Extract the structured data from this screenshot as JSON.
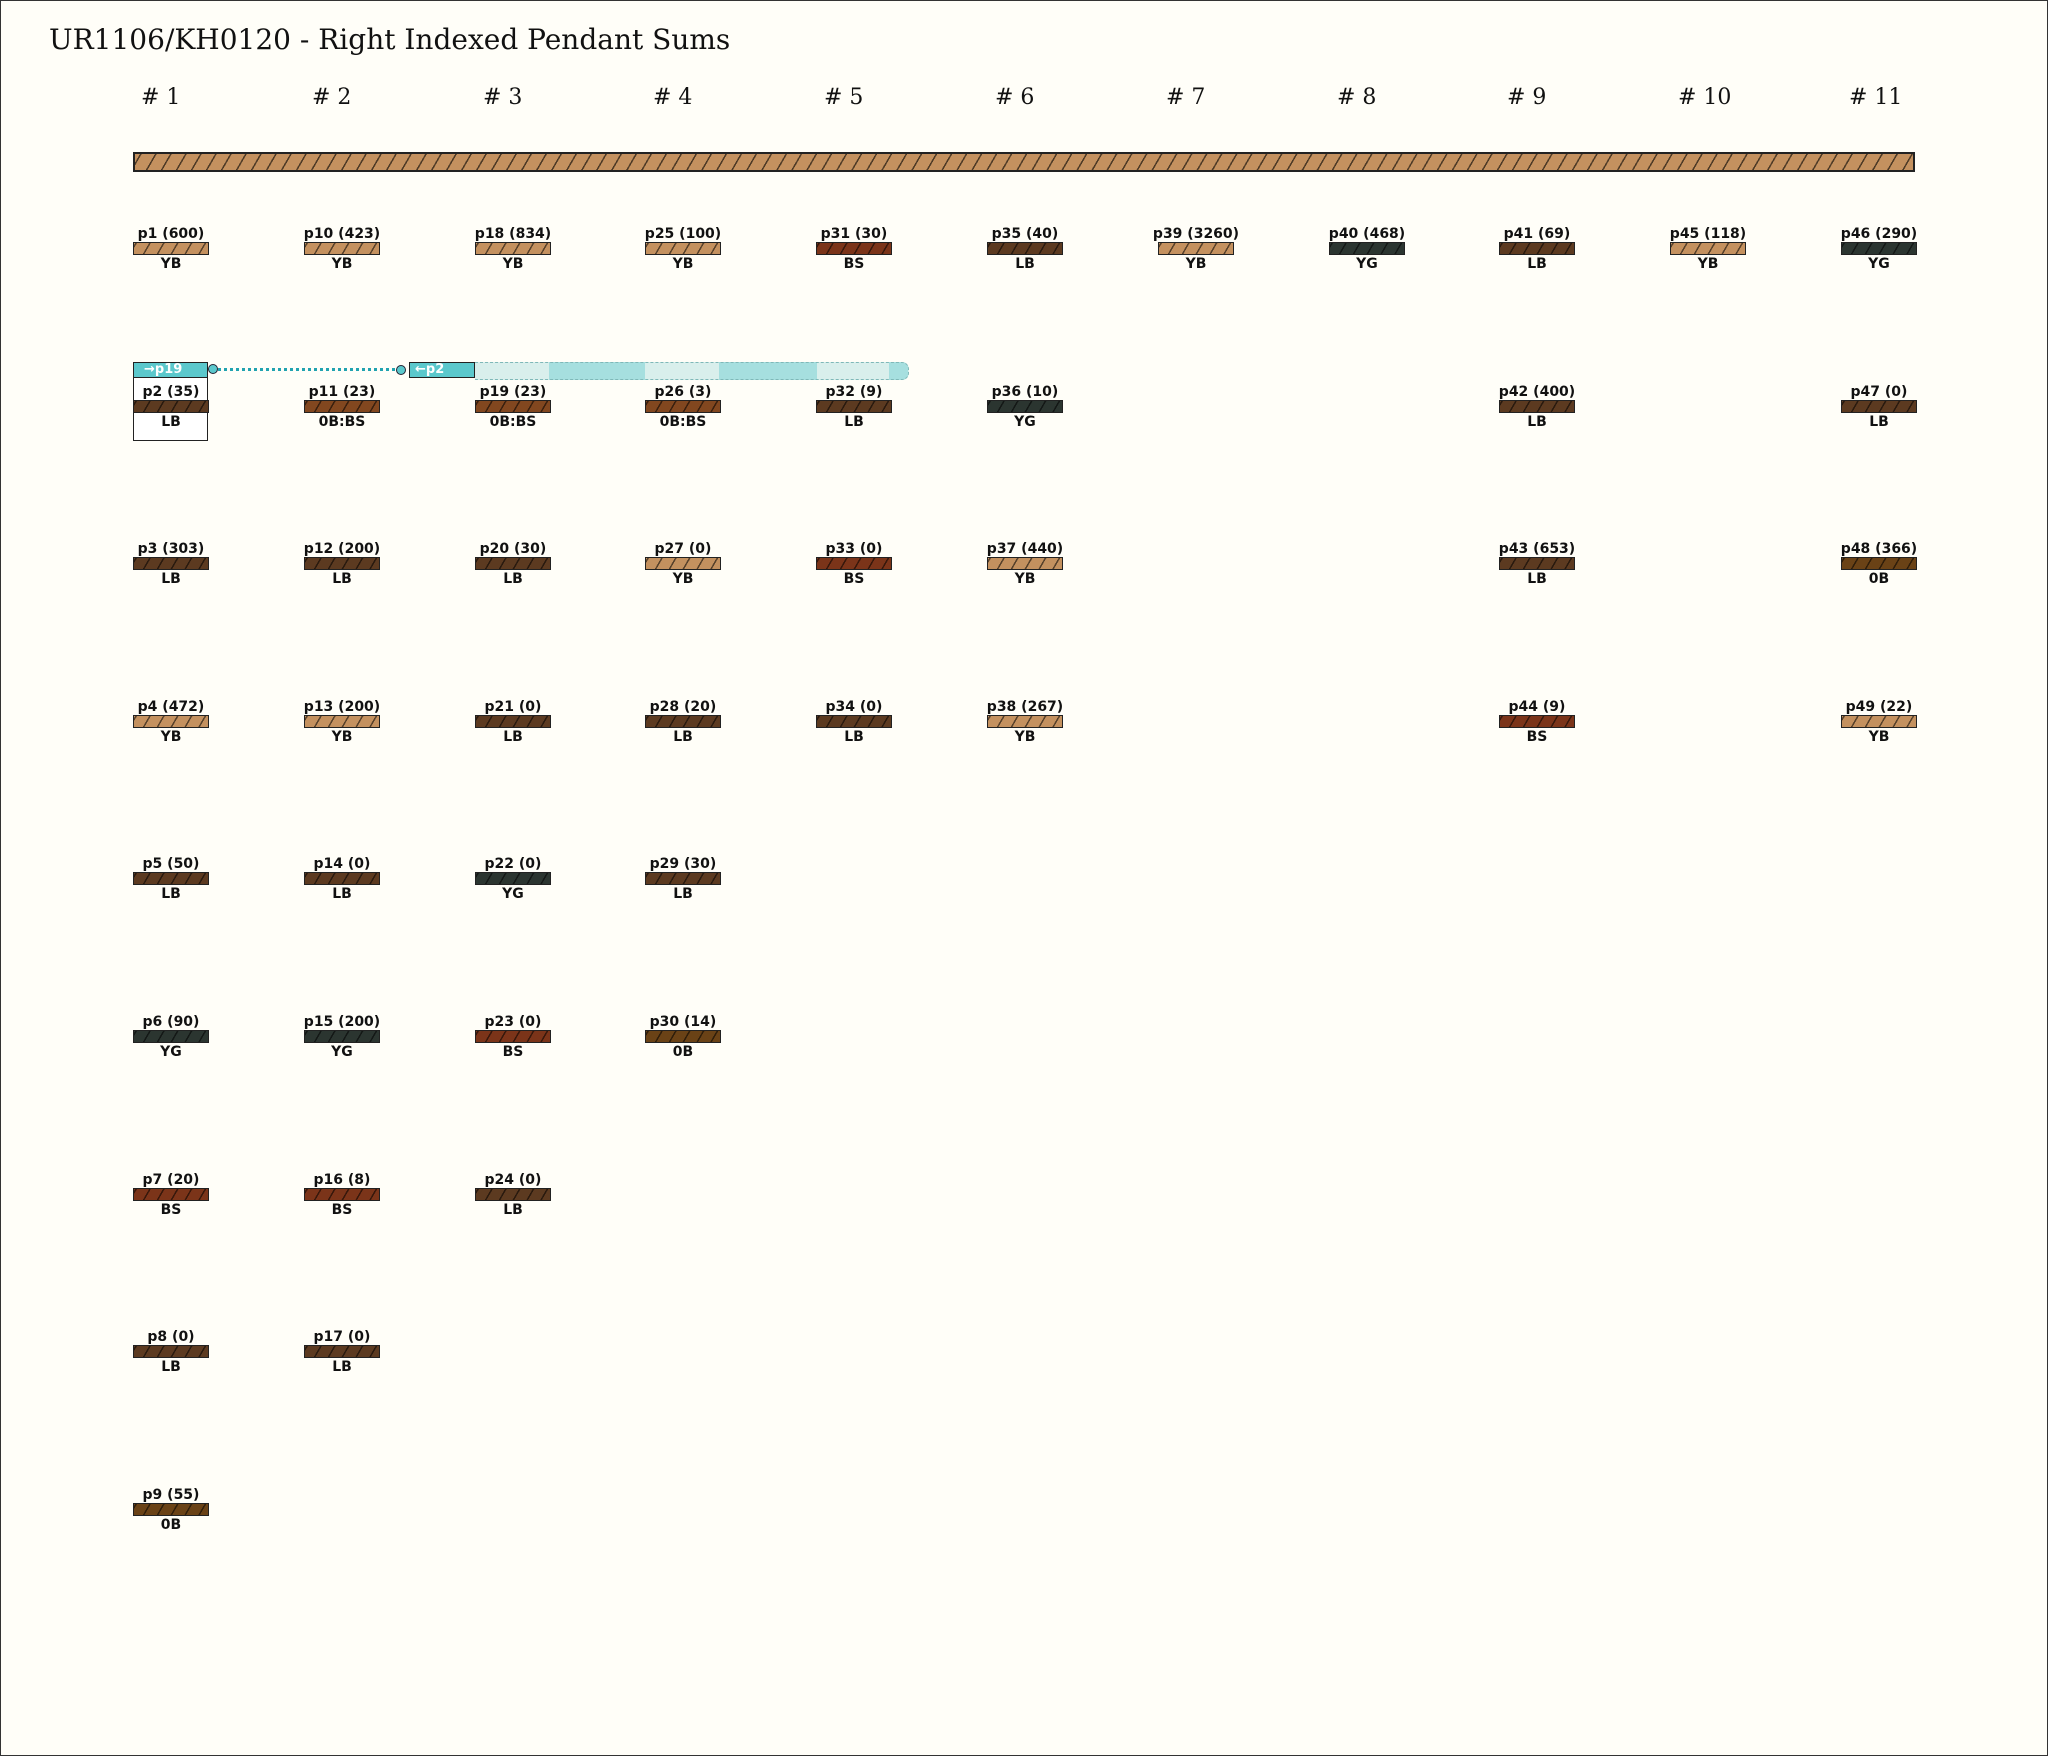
{
  "title": "UR1106/KH0120 - Right Indexed Pendant Sums",
  "cord_colors": {
    "YB": "#c4915f",
    "LB": "#5c3a20",
    "BS": "#7b3419",
    "YG": "#2b3530",
    "0B": "#6a4216",
    "0B:BS": "#82471f"
  },
  "link": {
    "from_label": "→p19",
    "to_label": "←p2"
  },
  "columns": [
    {
      "header": "# 1",
      "pendants": [
        {
          "label": "p1 (600)",
          "color": "YB"
        },
        {
          "label": "p2 (35)",
          "color": "LB"
        },
        {
          "label": "p3 (303)",
          "color": "LB"
        },
        {
          "label": "p4 (472)",
          "color": "YB"
        },
        {
          "label": "p5 (50)",
          "color": "LB"
        },
        {
          "label": "p6 (90)",
          "color": "YG"
        },
        {
          "label": "p7 (20)",
          "color": "BS"
        },
        {
          "label": "p8 (0)",
          "color": "LB"
        },
        {
          "label": "p9 (55)",
          "color": "0B"
        }
      ]
    },
    {
      "header": "# 2",
      "pendants": [
        {
          "label": "p10 (423)",
          "color": "YB"
        },
        {
          "label": "p11 (23)",
          "color": "0B:BS"
        },
        {
          "label": "p12 (200)",
          "color": "LB"
        },
        {
          "label": "p13 (200)",
          "color": "YB"
        },
        {
          "label": "p14 (0)",
          "color": "LB"
        },
        {
          "label": "p15 (200)",
          "color": "YG"
        },
        {
          "label": "p16 (8)",
          "color": "BS"
        },
        {
          "label": "p17 (0)",
          "color": "LB"
        }
      ]
    },
    {
      "header": "# 3",
      "pendants": [
        {
          "label": "p18 (834)",
          "color": "YB"
        },
        {
          "label": "p19 (23)",
          "color": "0B:BS"
        },
        {
          "label": "p20 (30)",
          "color": "LB"
        },
        {
          "label": "p21 (0)",
          "color": "LB"
        },
        {
          "label": "p22 (0)",
          "color": "YG"
        },
        {
          "label": "p23 (0)",
          "color": "BS"
        },
        {
          "label": "p24 (0)",
          "color": "LB"
        }
      ]
    },
    {
      "header": "# 4",
      "pendants": [
        {
          "label": "p25 (100)",
          "color": "YB"
        },
        {
          "label": "p26 (3)",
          "color": "0B:BS"
        },
        {
          "label": "p27 (0)",
          "color": "YB"
        },
        {
          "label": "p28 (20)",
          "color": "LB"
        },
        {
          "label": "p29 (30)",
          "color": "LB"
        },
        {
          "label": "p30 (14)",
          "color": "0B"
        }
      ]
    },
    {
      "header": "# 5",
      "pendants": [
        {
          "label": "p31 (30)",
          "color": "BS"
        },
        {
          "label": "p32 (9)",
          "color": "LB"
        },
        {
          "label": "p33 (0)",
          "color": "BS"
        },
        {
          "label": "p34 (0)",
          "color": "LB"
        }
      ]
    },
    {
      "header": "# 6",
      "pendants": [
        {
          "label": "p35 (40)",
          "color": "LB"
        },
        {
          "label": "p36 (10)",
          "color": "YG"
        },
        {
          "label": "p37 (440)",
          "color": "YB"
        },
        {
          "label": "p38 (267)",
          "color": "YB"
        }
      ]
    },
    {
      "header": "# 7",
      "pendants": [
        {
          "label": "p39 (3260)",
          "color": "YB"
        }
      ]
    },
    {
      "header": "# 8",
      "pendants": [
        {
          "label": "p40 (468)",
          "color": "YG"
        }
      ]
    },
    {
      "header": "# 9",
      "pendants": [
        {
          "label": "p41 (69)",
          "color": "LB"
        },
        {
          "label": "p42 (400)",
          "color": "LB"
        },
        {
          "label": "p43 (653)",
          "color": "LB"
        },
        {
          "label": "p44 (9)",
          "color": "BS"
        }
      ]
    },
    {
      "header": "# 10",
      "pendants": [
        {
          "label": "p45 (118)",
          "color": "YB"
        }
      ]
    },
    {
      "header": "# 11",
      "pendants": [
        {
          "label": "p46 (290)",
          "color": "YG"
        },
        {
          "label": "p47 (0)",
          "color": "LB"
        },
        {
          "label": "p48 (366)",
          "color": "0B"
        },
        {
          "label": "p49 (22)",
          "color": "YB"
        }
      ]
    }
  ]
}
